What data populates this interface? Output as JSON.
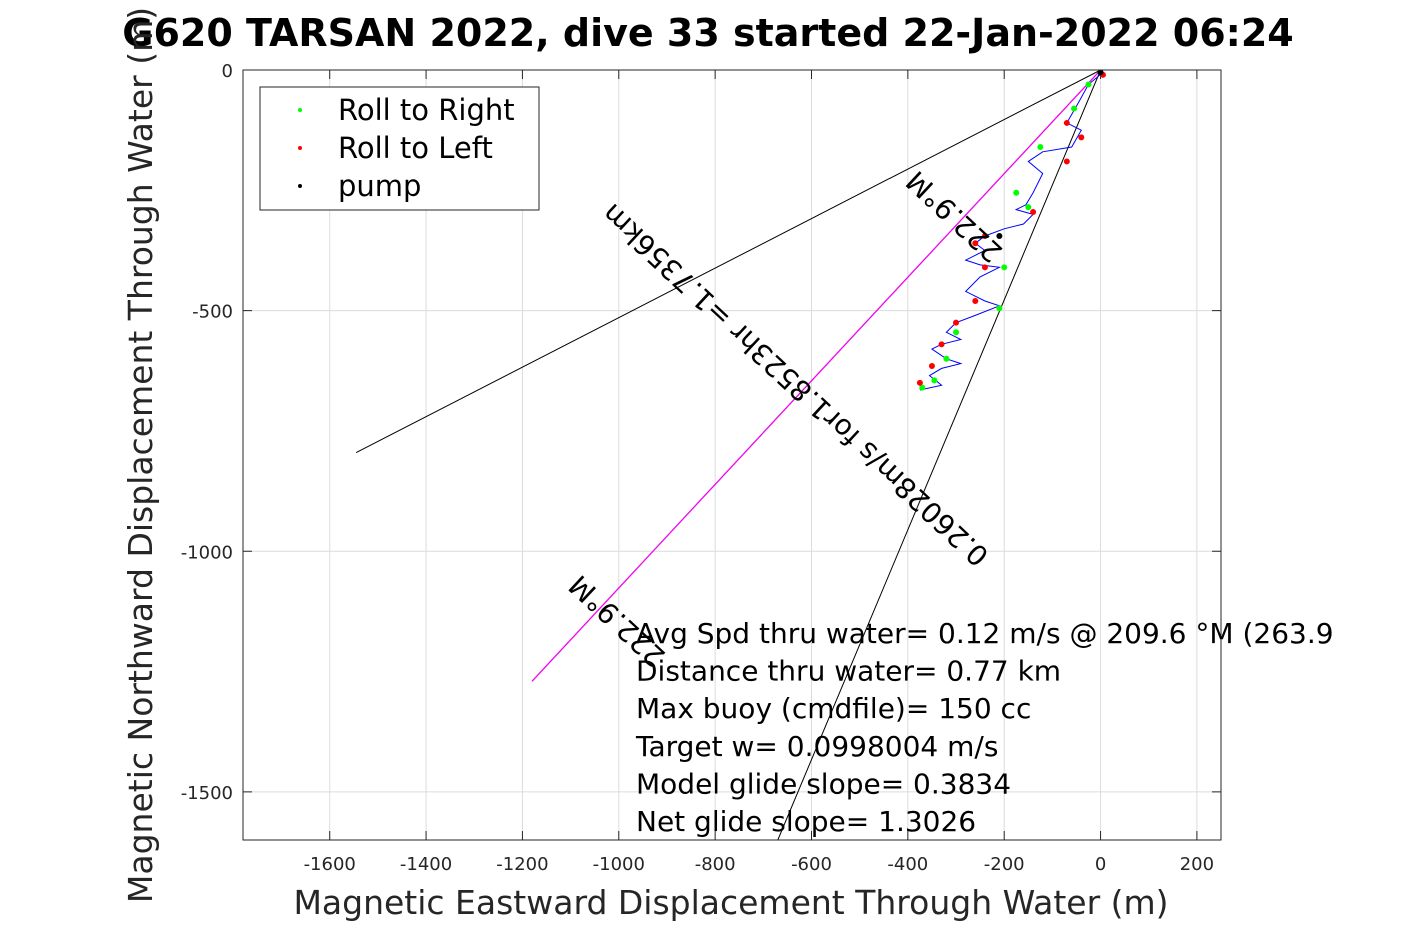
{
  "title": "G620 TARSAN 2022, dive 33 started 22-Jan-2022 06:24",
  "chart_data": {
    "type": "line",
    "xlabel": "Magnetic Eastward Displacement Through Water (m)",
    "ylabel": "Magnetic Northward Displacement Through Water (m)",
    "xlim": [
      -1780,
      250
    ],
    "ylim": [
      -1600,
      0
    ],
    "xticks": [
      -1600,
      -1400,
      -1200,
      -1000,
      -800,
      -600,
      -400,
      -200,
      0,
      200
    ],
    "yticks": [
      0,
      -500,
      -1000,
      -1500
    ],
    "grid": true,
    "legend_position": "top-left",
    "legend": [
      {
        "label": "Roll to Right",
        "color": "#00ff00"
      },
      {
        "label": "Roll to Left",
        "color": "#ff0000"
      },
      {
        "label": "pump",
        "color": "#000000"
      }
    ],
    "reference_lines": [
      {
        "color": "#000000",
        "points": [
          [
            0,
            0
          ],
          [
            -1545,
            -795
          ]
        ]
      },
      {
        "color": "#000000",
        "points": [
          [
            0,
            0
          ],
          [
            -670,
            -1600
          ]
        ]
      },
      {
        "color": "#000000",
        "points": [
          [
            0,
            0
          ],
          [
            -1180,
            -1270
          ]
        ]
      },
      {
        "color": "#ff00ff",
        "points": [
          [
            0,
            0
          ],
          [
            -1180,
            -1270
          ]
        ]
      }
    ],
    "track": {
      "color": "#0000ff",
      "points": [
        [
          5,
          -5
        ],
        [
          -25,
          -30
        ],
        [
          -50,
          -75
        ],
        [
          -70,
          -110
        ],
        [
          -40,
          -125
        ],
        [
          -60,
          -160
        ],
        [
          -120,
          -170
        ],
        [
          -150,
          -190
        ],
        [
          -120,
          -215
        ],
        [
          -140,
          -255
        ],
        [
          -155,
          -280
        ],
        [
          -175,
          -290
        ],
        [
          -140,
          -300
        ],
        [
          -160,
          -320
        ],
        [
          -200,
          -330
        ],
        [
          -240,
          -345
        ],
        [
          -260,
          -360
        ],
        [
          -240,
          -375
        ],
        [
          -280,
          -395
        ],
        [
          -250,
          -405
        ],
        [
          -210,
          -410
        ],
        [
          -250,
          -430
        ],
        [
          -280,
          -460
        ],
        [
          -240,
          -480
        ],
        [
          -210,
          -490
        ],
        [
          -260,
          -510
        ],
        [
          -300,
          -525
        ],
        [
          -320,
          -545
        ],
        [
          -290,
          -560
        ],
        [
          -330,
          -570
        ],
        [
          -350,
          -580
        ],
        [
          -320,
          -600
        ],
        [
          -290,
          -610
        ],
        [
          -330,
          -620
        ],
        [
          -355,
          -635
        ],
        [
          -330,
          -655
        ],
        [
          -375,
          -665
        ]
      ]
    },
    "roll_right_points": [
      [
        -25,
        -30
      ],
      [
        -55,
        -80
      ],
      [
        -125,
        -160
      ],
      [
        -175,
        -255
      ],
      [
        -150,
        -285
      ],
      [
        -200,
        -410
      ],
      [
        -210,
        -495
      ],
      [
        -300,
        -545
      ],
      [
        -320,
        -600
      ],
      [
        -345,
        -645
      ],
      [
        -370,
        -660
      ]
    ],
    "roll_left_points": [
      [
        5,
        -10
      ],
      [
        -70,
        -110
      ],
      [
        -40,
        -140
      ],
      [
        -70,
        -190
      ],
      [
        -140,
        -295
      ],
      [
        -240,
        -345
      ],
      [
        -260,
        -360
      ],
      [
        -240,
        -410
      ],
      [
        -260,
        -480
      ],
      [
        -300,
        -525
      ],
      [
        -330,
        -570
      ],
      [
        -350,
        -615
      ],
      [
        -375,
        -650
      ]
    ],
    "pump_points": [
      [
        0,
        -5
      ],
      [
        -210,
        -345
      ]
    ],
    "rotated_labels": [
      {
        "text": "222.9°M",
        "at": [
          -990,
          -1130
        ],
        "angle_deg": 223
      },
      {
        "text": "0.26028m/s for1.8523hr =1.7356km",
        "at": [
          -620,
          -640
        ],
        "angle_deg": 223
      },
      {
        "text": "222.9°M",
        "at": [
          -290,
          -290
        ],
        "angle_deg": 223
      }
    ],
    "annotations": [
      "Avg Spd thru water=  0.12 m/s @ 209.6 °M (263.9",
      "Distance thru water=  0.77 km",
      "Max buoy (cmdfile)= 150 cc",
      "Target w= 0.0998004 m/s",
      "Model glide slope= 0.3834",
      "Net glide slope= 1.3026"
    ]
  }
}
